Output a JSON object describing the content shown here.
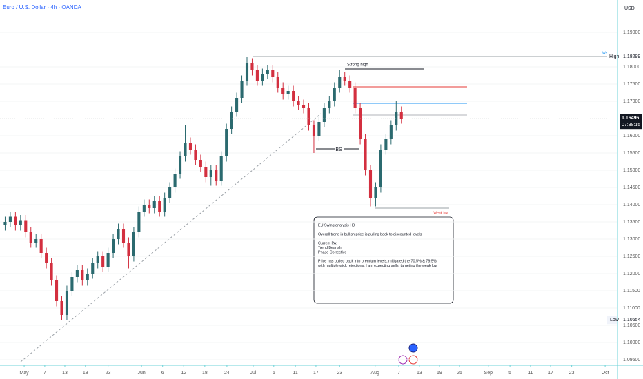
{
  "chart_data": {
    "type": "candlestick",
    "title": "Euro / U.S. Dollar · 4h · OANDA",
    "currency": "USD",
    "up_color": "#2b6a6f",
    "down_color": "#d32f3f",
    "xlim": [
      -1,
      119
    ],
    "ylim": [
      1.0934,
      1.1994
    ],
    "xticks": [
      {
        "value": 3.7,
        "label": "May"
      },
      {
        "value": 7.7,
        "label": "7"
      },
      {
        "value": 11.6,
        "label": "13"
      },
      {
        "value": 15.6,
        "label": "18"
      },
      {
        "value": 20.0,
        "label": "23"
      },
      {
        "value": 26.5,
        "label": "Jun"
      },
      {
        "value": 30.6,
        "label": "6"
      },
      {
        "value": 34.7,
        "label": "12"
      },
      {
        "value": 38.8,
        "label": "18"
      },
      {
        "value": 43.1,
        "label": "24"
      },
      {
        "value": 48.2,
        "label": "Jul"
      },
      {
        "value": 52.2,
        "label": "6"
      },
      {
        "value": 56.4,
        "label": "11"
      },
      {
        "value": 60.4,
        "label": "17"
      },
      {
        "value": 65.0,
        "label": "23"
      },
      {
        "value": 71.9,
        "label": "Aug"
      },
      {
        "value": 76.5,
        "label": "7"
      },
      {
        "value": 80.5,
        "label": "13"
      },
      {
        "value": 84.4,
        "label": "19"
      },
      {
        "value": 88.3,
        "label": "25"
      },
      {
        "value": 93.9,
        "label": "Sep"
      },
      {
        "value": 98.1,
        "label": "5"
      },
      {
        "value": 102.1,
        "label": "11"
      },
      {
        "value": 106.0,
        "label": "17"
      },
      {
        "value": 110.1,
        "label": "23"
      },
      {
        "value": 116.6,
        "label": "Oct"
      }
    ],
    "yticks": [
      {
        "value": 1.095,
        "label": "1.09500"
      },
      {
        "value": 1.1,
        "label": "1.10000"
      },
      {
        "value": 1.105,
        "label": "1.10500"
      },
      {
        "value": 1.11,
        "label": "1.11000"
      },
      {
        "value": 1.115,
        "label": "1.11500"
      },
      {
        "value": 1.12,
        "label": "1.12000"
      },
      {
        "value": 1.125,
        "label": "1.12500"
      },
      {
        "value": 1.13,
        "label": "1.13000"
      },
      {
        "value": 1.135,
        "label": "1.13500"
      },
      {
        "value": 1.14,
        "label": "1.14000"
      },
      {
        "value": 1.145,
        "label": "1.14500"
      },
      {
        "value": 1.15,
        "label": "1.15000"
      },
      {
        "value": 1.155,
        "label": "1.15500"
      },
      {
        "value": 1.16,
        "label": "1.16000"
      },
      {
        "value": 1.17,
        "label": "1.17000"
      },
      {
        "value": 1.175,
        "label": "1.17500"
      },
      {
        "value": 1.18,
        "label": "1.18000"
      },
      {
        "value": 1.19,
        "label": "1.19000"
      }
    ],
    "open": [
      1.134,
      1.135,
      1.1365,
      1.134,
      1.1355,
      1.132,
      1.129,
      1.13,
      1.126,
      1.123,
      1.118,
      1.112,
      1.108,
      1.115,
      1.119,
      1.121,
      1.118,
      1.12,
      1.123,
      1.125,
      1.122,
      1.126,
      1.13,
      1.133,
      1.129,
      1.125,
      1.132,
      1.138,
      1.14,
      1.139,
      1.141,
      1.138,
      1.142,
      1.145,
      1.149,
      1.154,
      1.158,
      1.156,
      1.153,
      1.151,
      1.148,
      1.15,
      1.147,
      1.154,
      1.162,
      1.167,
      1.171,
      1.176,
      1.181,
      1.179,
      1.176,
      1.178,
      1.179,
      1.177,
      1.174,
      1.172,
      1.173,
      1.17,
      1.169,
      1.168,
      1.163,
      1.16,
      1.164,
      1.168,
      1.17,
      1.174,
      1.177,
      1.176,
      1.174,
      1.168,
      1.159,
      1.15,
      1.142,
      1.145,
      1.156,
      1.159,
      1.163,
      1.167
    ],
    "high": [
      1.1365,
      1.138,
      1.138,
      1.137,
      1.137,
      1.1335,
      1.1315,
      1.1315,
      1.1275,
      1.1245,
      1.1195,
      1.1135,
      1.1165,
      1.1205,
      1.1225,
      1.1225,
      1.1215,
      1.1245,
      1.1265,
      1.1265,
      1.1275,
      1.1315,
      1.1345,
      1.1345,
      1.1305,
      1.1335,
      1.1395,
      1.1415,
      1.1415,
      1.1425,
      1.1425,
      1.1435,
      1.1465,
      1.1505,
      1.1555,
      1.163,
      1.1595,
      1.1575,
      1.1545,
      1.1525,
      1.1515,
      1.1515,
      1.1555,
      1.1635,
      1.1685,
      1.1725,
      1.1775,
      1.183,
      1.1825,
      1.1805,
      1.1795,
      1.1805,
      1.1805,
      1.1785,
      1.1755,
      1.1745,
      1.1745,
      1.1715,
      1.1705,
      1.1695,
      1.1645,
      1.1655,
      1.1695,
      1.1715,
      1.1755,
      1.179,
      1.1785,
      1.1775,
      1.1755,
      1.1695,
      1.1605,
      1.1515,
      1.1465,
      1.1575,
      1.1605,
      1.1645,
      1.17,
      1.1685
    ],
    "low": [
      1.1325,
      1.1335,
      1.1325,
      1.1325,
      1.1305,
      1.1275,
      1.1275,
      1.1245,
      1.1215,
      1.1165,
      1.1105,
      1.1065,
      1.1065,
      1.1135,
      1.1175,
      1.1165,
      1.1165,
      1.1185,
      1.1215,
      1.1205,
      1.1205,
      1.1245,
      1.1285,
      1.1275,
      1.1215,
      1.1235,
      1.1305,
      1.1365,
      1.1375,
      1.1375,
      1.1365,
      1.1365,
      1.1405,
      1.1435,
      1.1475,
      1.1525,
      1.1545,
      1.1515,
      1.1495,
      1.1465,
      1.1455,
      1.1455,
      1.1455,
      1.1525,
      1.1605,
      1.1655,
      1.1695,
      1.1745,
      1.1775,
      1.1745,
      1.1745,
      1.1765,
      1.1755,
      1.1725,
      1.1705,
      1.1705,
      1.1685,
      1.1675,
      1.1665,
      1.1615,
      1.155,
      1.1585,
      1.1625,
      1.1665,
      1.1685,
      1.1725,
      1.1745,
      1.1725,
      1.1665,
      1.1575,
      1.1485,
      1.1395,
      1.1395,
      1.1435,
      1.1545,
      1.1575,
      1.1615,
      1.1635
    ],
    "close": [
      1.135,
      1.1365,
      1.134,
      1.1355,
      1.132,
      1.129,
      1.13,
      1.126,
      1.123,
      1.118,
      1.112,
      1.108,
      1.115,
      1.119,
      1.121,
      1.118,
      1.12,
      1.123,
      1.125,
      1.122,
      1.126,
      1.13,
      1.133,
      1.129,
      1.125,
      1.132,
      1.138,
      1.14,
      1.139,
      1.141,
      1.138,
      1.142,
      1.145,
      1.149,
      1.154,
      1.158,
      1.156,
      1.153,
      1.151,
      1.148,
      1.15,
      1.147,
      1.154,
      1.162,
      1.167,
      1.171,
      1.176,
      1.181,
      1.179,
      1.176,
      1.178,
      1.179,
      1.177,
      1.174,
      1.172,
      1.173,
      1.17,
      1.169,
      1.168,
      1.163,
      1.16,
      1.164,
      1.168,
      1.17,
      1.174,
      1.177,
      1.176,
      1.174,
      1.168,
      1.159,
      1.15,
      1.142,
      1.145,
      1.156,
      1.159,
      1.163,
      1.167,
      1.165
    ],
    "high_marker": {
      "label": "High",
      "value": 1.18299,
      "value_label": "1.18299"
    },
    "low_marker": {
      "label": "Low",
      "value": 1.10654,
      "value_label": "1.10654"
    },
    "last_price": {
      "value": 1.16496,
      "value_label": "1.16496",
      "countdown": "07:38:15"
    },
    "annotations": {
      "strong_high": "Strong high",
      "bs": "BS",
      "weak_low": "Weak low",
      "wk": "We"
    },
    "note": [
      [
        "EU Swing analysis H8"
      ],
      [
        "Overall trend is bullish price is pulling back to discounted levels"
      ],
      [
        "Current PA:",
        "Trend Bearish",
        "Phase Corrective"
      ],
      [
        "Price has pulled back into premium levels, mitigated the 70.5% & 79.5%",
        "with multiple wick rejections. I am expecting sells, targeting the weak low"
      ]
    ]
  }
}
